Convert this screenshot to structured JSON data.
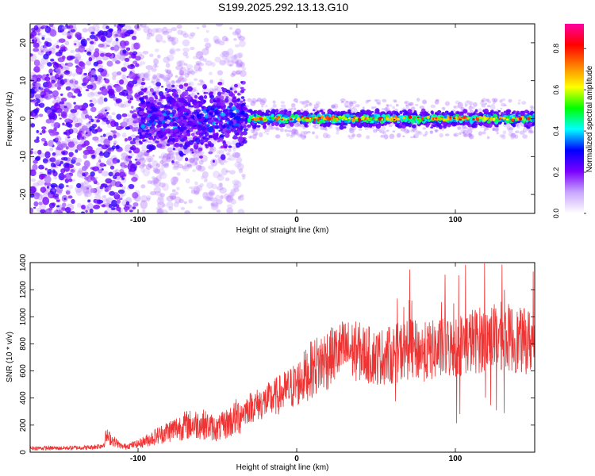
{
  "title": "S199.2025.292.13.13.G10",
  "chart_data": [
    {
      "type": "heatmap",
      "xlabel": "Height of straight line (km)",
      "ylabel": "Frequency (Hz)",
      "xlim": [
        -168,
        150
      ],
      "ylim": [
        -25,
        25
      ],
      "xticks": [
        -100,
        0,
        100
      ],
      "yticks": [
        -20,
        -10,
        0,
        10,
        20
      ],
      "colorbar": {
        "label": "Normalized spectral amplitude",
        "range": [
          0,
          0.92
        ],
        "ticks": [
          0.0,
          0.2,
          0.4,
          0.6,
          0.8
        ],
        "colormap": [
          "#ffffff",
          "#c9a6ff",
          "#7a00ff",
          "#0000ff",
          "#00ffff",
          "#00ff00",
          "#ffff00",
          "#ff8000",
          "#ff0000",
          "#ff00a0"
        ]
      },
      "description_bands": [
        {
          "x_range": [
            -168,
            -100
          ],
          "freq_spread": 25,
          "level": 0.15
        },
        {
          "x_range": [
            -100,
            -35
          ],
          "freq_spread": 7,
          "level": 0.25
        },
        {
          "x_range": [
            -35,
            150
          ],
          "freq_spread": 1.5,
          "level": 0.75
        }
      ]
    },
    {
      "type": "line",
      "xlabel": "Height of straight line (km)",
      "ylabel": "SNR (10 * v/v)",
      "xlim": [
        -168,
        150
      ],
      "ylim": [
        0,
        1400
      ],
      "xticks": [
        -100,
        0,
        100
      ],
      "yticks": [
        0,
        200,
        400,
        600,
        800,
        1000,
        1200,
        1400
      ],
      "color": "#ee3333",
      "series": [
        {
          "x": [
            -168,
            -150,
            -130,
            -122,
            -120,
            -110,
            -100,
            -90,
            -80,
            -70,
            -60,
            -50,
            -40,
            -30,
            -20,
            -10,
            0,
            10,
            20,
            30,
            40,
            50,
            60,
            70,
            80,
            90,
            100,
            110,
            120,
            130,
            140,
            150
          ],
          "values": [
            30,
            30,
            35,
            50,
            120,
            40,
            60,
            110,
            160,
            200,
            210,
            170,
            240,
            330,
            370,
            430,
            500,
            620,
            700,
            760,
            740,
            700,
            720,
            760,
            740,
            760,
            780,
            820,
            840,
            860,
            820,
            820
          ]
        }
      ]
    }
  ]
}
